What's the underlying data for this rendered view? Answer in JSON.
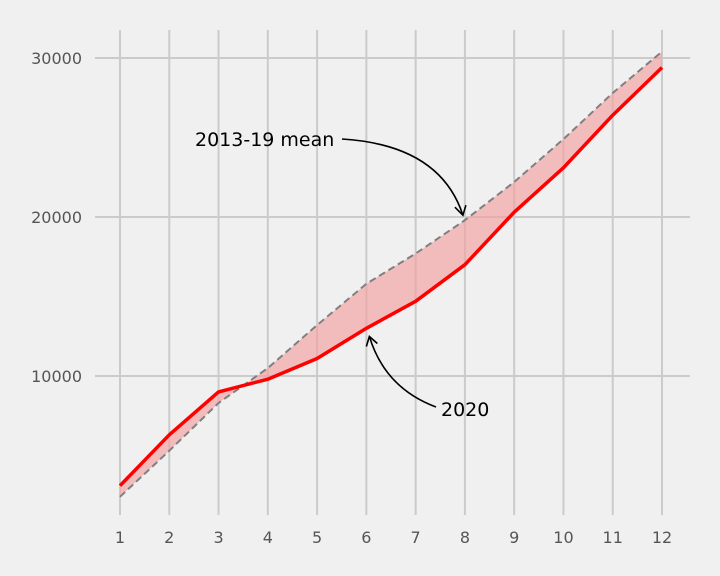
{
  "chart_data": {
    "type": "line",
    "title": "",
    "xlabel": "",
    "ylabel": "",
    "x": [
      1,
      2,
      3,
      4,
      5,
      6,
      7,
      8,
      9,
      10,
      11,
      12
    ],
    "xlim": [
      0.8,
      12.6
    ],
    "ylim": [
      1500,
      32000
    ],
    "x_ticks": [
      "1",
      "2",
      "3",
      "4",
      "5",
      "6",
      "7",
      "8",
      "9",
      "10",
      "11",
      "12"
    ],
    "y_ticks": [
      "10000",
      "20000",
      "30000"
    ],
    "y_tick_values": [
      10000,
      20000,
      30000
    ],
    "grid": true,
    "legend": "none",
    "series": [
      {
        "name": "2020",
        "style": "solid",
        "color": "#ff0000",
        "values": [
          3100,
          6300,
          9000,
          9800,
          11100,
          13000,
          14700,
          17000,
          20300,
          23100,
          26400,
          29400
        ]
      },
      {
        "name": "2013-19 mean",
        "style": "dashed",
        "color": "#808080",
        "values": [
          2400,
          5300,
          8300,
          10500,
          13200,
          15800,
          17700,
          19800,
          22200,
          24900,
          27800,
          30400
        ]
      }
    ],
    "fill_between": {
      "color": "#f4a0a0"
    },
    "annotations": [
      {
        "text": "2013-19 mean",
        "points_to": {
          "x": 8,
          "y": 19800
        }
      },
      {
        "text": "2020",
        "points_to": {
          "x": 6,
          "y": 12800
        }
      }
    ]
  }
}
